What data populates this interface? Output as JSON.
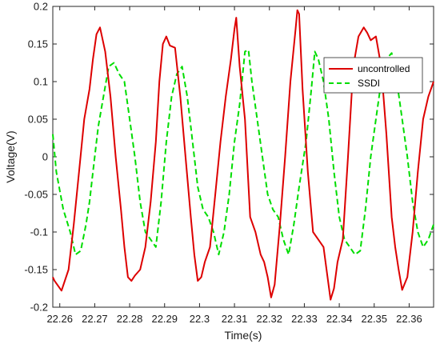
{
  "chart_data": {
    "type": "line",
    "title": "",
    "xlabel": "Time(s)",
    "ylabel": "Voltage(V)",
    "xlim": [
      22.258,
      22.367
    ],
    "ylim": [
      -0.2,
      0.2
    ],
    "x_ticks": [
      22.26,
      22.27,
      22.28,
      22.29,
      22.3,
      22.31,
      22.32,
      22.33,
      22.34,
      22.35,
      22.36
    ],
    "x_tick_labels": [
      "22.26",
      "22.27",
      "22.28",
      "22.29",
      "22.3",
      "22.31",
      "22.32",
      "22.33",
      "22.34",
      "22.35",
      "22.36"
    ],
    "y_ticks": [
      -0.2,
      -0.15,
      -0.1,
      -0.05,
      0,
      0.05,
      0.1,
      0.15,
      0.2
    ],
    "y_tick_labels": [
      "-0.2",
      "-0.15",
      "-0.1",
      "-0.05",
      "0",
      "0.05",
      "0.1",
      "0.15",
      "0.2"
    ],
    "grid": false,
    "legend_position": "top-right",
    "series": [
      {
        "name": "uncontrolled",
        "color": "#dd0000",
        "style": "solid",
        "x": [
          22.258,
          22.2585,
          22.2605,
          22.2625,
          22.264,
          22.2655,
          22.267,
          22.2685,
          22.2695,
          22.2705,
          22.2715,
          22.273,
          22.2745,
          22.276,
          22.2775,
          22.2785,
          22.2795,
          22.2805,
          22.2815,
          22.283,
          22.2845,
          22.286,
          22.2875,
          22.2885,
          22.2895,
          22.2905,
          22.2915,
          22.293,
          22.2945,
          22.296,
          22.2975,
          22.2985,
          22.2995,
          22.3005,
          22.3015,
          22.303,
          22.3045,
          22.306,
          22.3075,
          22.309,
          22.31,
          22.3105,
          22.3115,
          22.313,
          22.3145,
          22.316,
          22.3175,
          22.3185,
          22.3195,
          22.3205,
          22.3215,
          22.323,
          22.3245,
          22.326,
          22.3275,
          22.328,
          22.3285,
          22.3295,
          22.331,
          22.3325,
          22.334,
          22.3355,
          22.3365,
          22.3375,
          22.3385,
          22.3395,
          22.341,
          22.3425,
          22.344,
          22.3455,
          22.347,
          22.348,
          22.349,
          22.3505,
          22.352,
          22.3535,
          22.355,
          22.356,
          22.357,
          22.358,
          22.3595,
          22.361,
          22.3625,
          22.364,
          22.3655,
          22.367
        ],
        "y": [
          -0.16,
          -0.165,
          -0.178,
          -0.15,
          -0.09,
          -0.02,
          0.05,
          0.09,
          0.13,
          0.163,
          0.172,
          0.14,
          0.08,
          0.0,
          -0.07,
          -0.12,
          -0.16,
          -0.165,
          -0.158,
          -0.15,
          -0.12,
          -0.06,
          0.02,
          0.1,
          0.15,
          0.16,
          0.148,
          0.145,
          0.08,
          0.0,
          -0.08,
          -0.13,
          -0.165,
          -0.16,
          -0.14,
          -0.12,
          -0.05,
          0.02,
          0.08,
          0.13,
          0.17,
          0.185,
          0.12,
          0.05,
          -0.08,
          -0.1,
          -0.13,
          -0.14,
          -0.16,
          -0.187,
          -0.17,
          -0.09,
          0.0,
          0.1,
          0.17,
          0.195,
          0.19,
          0.09,
          -0.02,
          -0.1,
          -0.11,
          -0.12,
          -0.155,
          -0.19,
          -0.175,
          -0.14,
          -0.11,
          0.0,
          0.12,
          0.16,
          0.172,
          0.165,
          0.155,
          0.16,
          0.12,
          0.03,
          -0.08,
          -0.12,
          -0.15,
          -0.177,
          -0.16,
          -0.1,
          -0.02,
          0.05,
          0.08,
          0.1
        ]
      },
      {
        "name": "SSDI",
        "color": "#00dd00",
        "style": "dashed",
        "x": [
          22.258,
          22.259,
          22.261,
          22.263,
          22.2645,
          22.266,
          22.2675,
          22.2685,
          22.2695,
          22.271,
          22.2725,
          22.274,
          22.2755,
          22.277,
          22.2785,
          22.28,
          22.2815,
          22.283,
          22.2845,
          22.286,
          22.2875,
          22.289,
          22.2905,
          22.292,
          22.2935,
          22.295,
          22.2965,
          22.298,
          22.2995,
          22.301,
          22.3025,
          22.304,
          22.3055,
          22.307,
          22.3085,
          22.31,
          22.3115,
          22.313,
          22.314,
          22.315,
          22.3165,
          22.318,
          22.3195,
          22.321,
          22.3225,
          22.324,
          22.3255,
          22.327,
          22.3285,
          22.3305,
          22.332,
          22.333,
          22.334,
          22.3355,
          22.337,
          22.3385,
          22.34,
          22.3415,
          22.343,
          22.3445,
          22.346,
          22.3475,
          22.349,
          22.3505,
          22.352,
          22.3535,
          22.355,
          22.3565,
          22.358,
          22.3595,
          22.361,
          22.3625,
          22.364,
          22.3655,
          22.367
        ],
        "y": [
          0.03,
          -0.02,
          -0.07,
          -0.1,
          -0.13,
          -0.125,
          -0.09,
          -0.06,
          -0.02,
          0.04,
          0.08,
          0.12,
          0.125,
          0.11,
          0.1,
          0.05,
          0.0,
          -0.06,
          -0.1,
          -0.11,
          -0.12,
          -0.06,
          0.02,
          0.08,
          0.11,
          0.12,
          0.08,
          0.02,
          -0.04,
          -0.07,
          -0.08,
          -0.1,
          -0.13,
          -0.1,
          -0.05,
          0.02,
          0.07,
          0.14,
          0.142,
          0.1,
          0.05,
          0.0,
          -0.05,
          -0.07,
          -0.08,
          -0.11,
          -0.13,
          -0.09,
          -0.04,
          0.02,
          0.09,
          0.14,
          0.13,
          0.1,
          0.05,
          -0.02,
          -0.08,
          -0.11,
          -0.12,
          -0.13,
          -0.125,
          -0.07,
          0.0,
          0.05,
          0.1,
          0.13,
          0.138,
          0.1,
          0.05,
          0.0,
          -0.06,
          -0.1,
          -0.12,
          -0.11,
          -0.09
        ]
      }
    ]
  }
}
